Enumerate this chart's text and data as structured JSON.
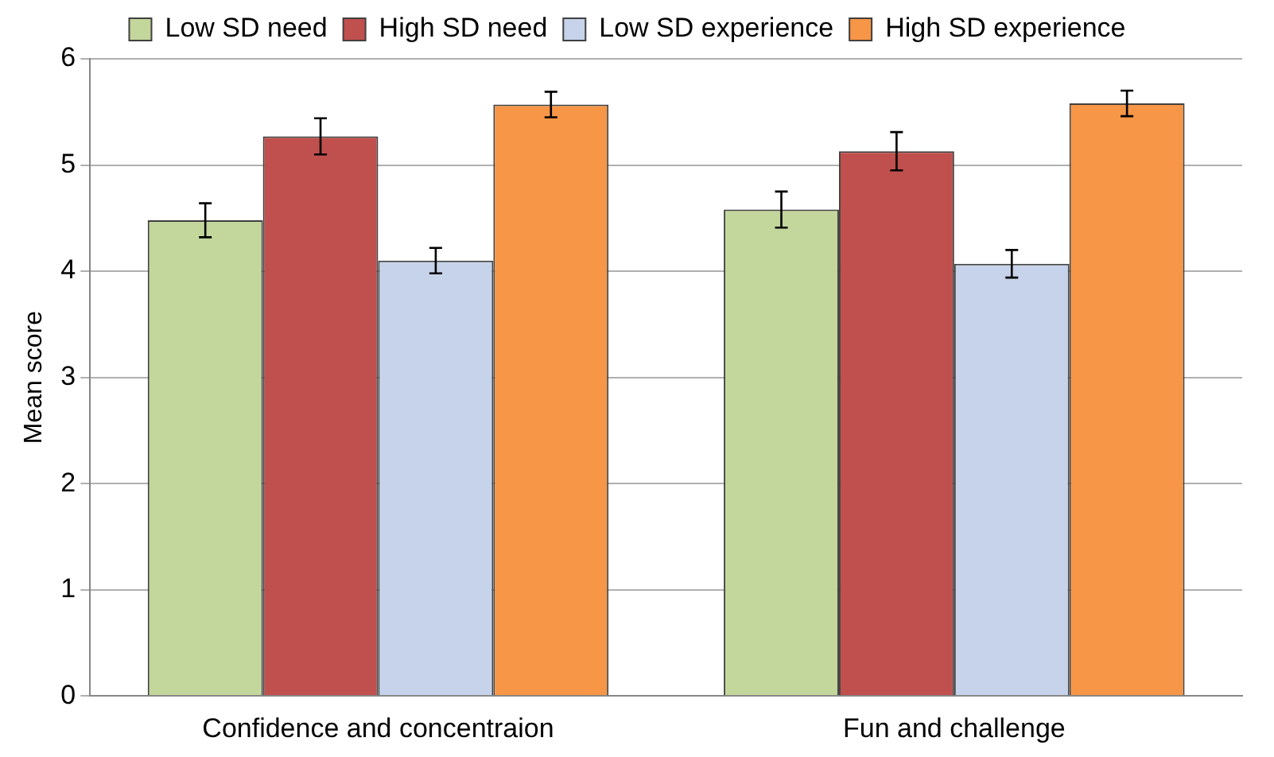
{
  "chart_data": {
    "type": "bar",
    "ylabel": "Mean score",
    "categories": [
      "Confidence and concentraion",
      "Fun and challenge"
    ],
    "series": [
      {
        "name": "Low SD need",
        "color": "#c3d69b",
        "values": [
          4.48,
          4.58
        ],
        "errors": [
          0.16,
          0.17
        ]
      },
      {
        "name": "High SD need",
        "color": "#c0504d",
        "values": [
          5.27,
          5.13
        ],
        "errors": [
          0.17,
          0.18
        ]
      },
      {
        "name": "Low SD experience",
        "color": "#c6d3ea",
        "values": [
          4.1,
          4.07
        ],
        "errors": [
          0.12,
          0.13
        ]
      },
      {
        "name": "High SD experience",
        "color": "#f79646",
        "values": [
          5.57,
          5.58
        ],
        "errors": [
          0.12,
          0.12
        ]
      }
    ],
    "ylim": [
      0,
      6
    ],
    "yticks": [
      0,
      1,
      2,
      3,
      4,
      5,
      6
    ],
    "grid": "y",
    "legend": "top"
  }
}
